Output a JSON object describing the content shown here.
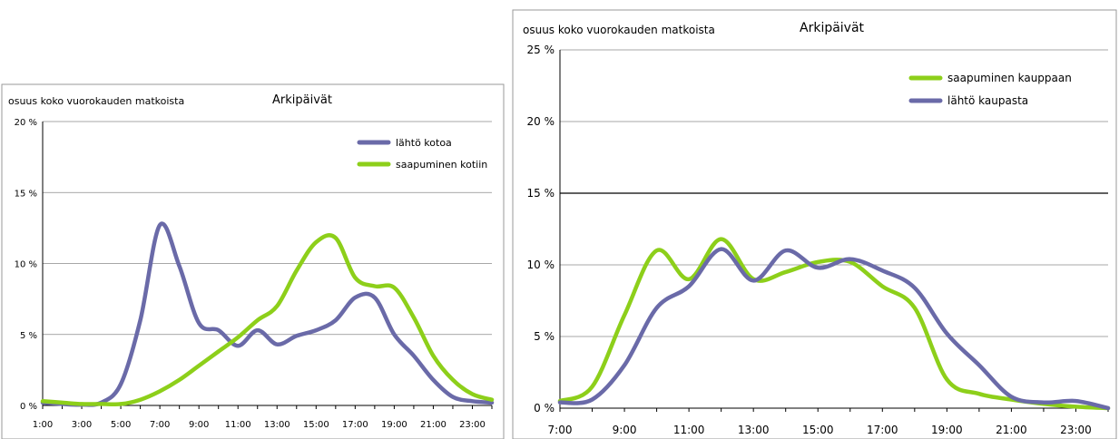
{
  "chart_data": [
    {
      "type": "line",
      "title": "Arkipäivät",
      "ylabel": "osuus koko vuorokauden matkoista",
      "xlabel": "",
      "ylim": [
        0,
        20
      ],
      "yticks": [
        0,
        5,
        10,
        15,
        20
      ],
      "ytick_labels": [
        "0 %",
        "5 %",
        "10 %",
        "15 %",
        "20 %"
      ],
      "xlim": [
        1,
        24
      ],
      "xticks": [
        1,
        3,
        5,
        7,
        9,
        11,
        13,
        15,
        17,
        19,
        21,
        23
      ],
      "xtick_labels": [
        "1:00",
        "3:00",
        "5:00",
        "7:00",
        "9:00",
        "11:00",
        "13:00",
        "15:00",
        "17:00",
        "19:00",
        "21:00",
        "23:00"
      ],
      "grid": true,
      "legend_position": "top-right",
      "series": [
        {
          "name": "lähtö kotoa",
          "color": "#6a6aa8",
          "x": [
            1,
            2,
            3,
            4,
            5,
            6,
            7,
            8,
            9,
            10,
            11,
            12,
            13,
            14,
            15,
            16,
            17,
            18,
            19,
            20,
            21,
            22,
            23,
            24
          ],
          "y": [
            0.2,
            0.1,
            0.05,
            0.2,
            1.5,
            6.0,
            12.7,
            9.8,
            5.8,
            5.3,
            4.2,
            5.3,
            4.3,
            4.9,
            5.3,
            6.0,
            7.6,
            7.6,
            5.0,
            3.5,
            1.8,
            0.6,
            0.3,
            0.2
          ]
        },
        {
          "name": "saapuminen kotiin",
          "color": "#8dcf1a",
          "x": [
            1,
            2,
            3,
            4,
            5,
            6,
            7,
            8,
            9,
            10,
            11,
            12,
            13,
            14,
            15,
            16,
            17,
            18,
            19,
            20,
            21,
            22,
            23,
            24
          ],
          "y": [
            0.3,
            0.2,
            0.1,
            0.1,
            0.1,
            0.4,
            1.0,
            1.8,
            2.8,
            3.8,
            4.8,
            6.0,
            7.0,
            9.5,
            11.5,
            11.8,
            9.0,
            8.4,
            8.3,
            6.2,
            3.5,
            1.8,
            0.8,
            0.4
          ]
        }
      ]
    },
    {
      "type": "line",
      "title": "Arkipäivät",
      "ylabel": "osuus koko vuorokauden matkoista",
      "xlabel": "",
      "ylim": [
        0,
        25
      ],
      "yticks": [
        0,
        5,
        10,
        15,
        20,
        25
      ],
      "ytick_labels": [
        "0 %",
        "5 %",
        "10 %",
        "15 %",
        "20 %",
        "25 %"
      ],
      "xlim": [
        7,
        24
      ],
      "xticks": [
        7,
        9,
        11,
        13,
        15,
        17,
        19,
        21,
        23
      ],
      "xtick_labels": [
        "7:00",
        "9:00",
        "11:00",
        "13:00",
        "15:00",
        "17:00",
        "19:00",
        "21:00",
        "23:00"
      ],
      "grid": true,
      "legend_position": "top-right",
      "series": [
        {
          "name": "saapuminen kauppaan",
          "color": "#8dcf1a",
          "x": [
            7,
            8,
            9,
            10,
            11,
            12,
            13,
            14,
            15,
            16,
            17,
            18,
            19,
            20,
            21,
            22,
            23,
            24
          ],
          "y": [
            0.5,
            1.5,
            6.5,
            11.0,
            9.0,
            11.8,
            9.0,
            9.5,
            10.2,
            10.2,
            8.5,
            7.0,
            2.0,
            1.0,
            0.6,
            0.3,
            0.1,
            0.0
          ]
        },
        {
          "name": "lähtö kaupasta",
          "color": "#6a6aa8",
          "x": [
            7,
            8,
            9,
            10,
            11,
            12,
            13,
            14,
            15,
            16,
            17,
            18,
            19,
            20,
            21,
            22,
            23,
            24
          ],
          "y": [
            0.4,
            0.6,
            3.0,
            7.0,
            8.5,
            11.1,
            8.9,
            11.0,
            9.8,
            10.4,
            9.6,
            8.4,
            5.2,
            3.0,
            0.8,
            0.4,
            0.5,
            0.0
          ]
        }
      ]
    }
  ]
}
